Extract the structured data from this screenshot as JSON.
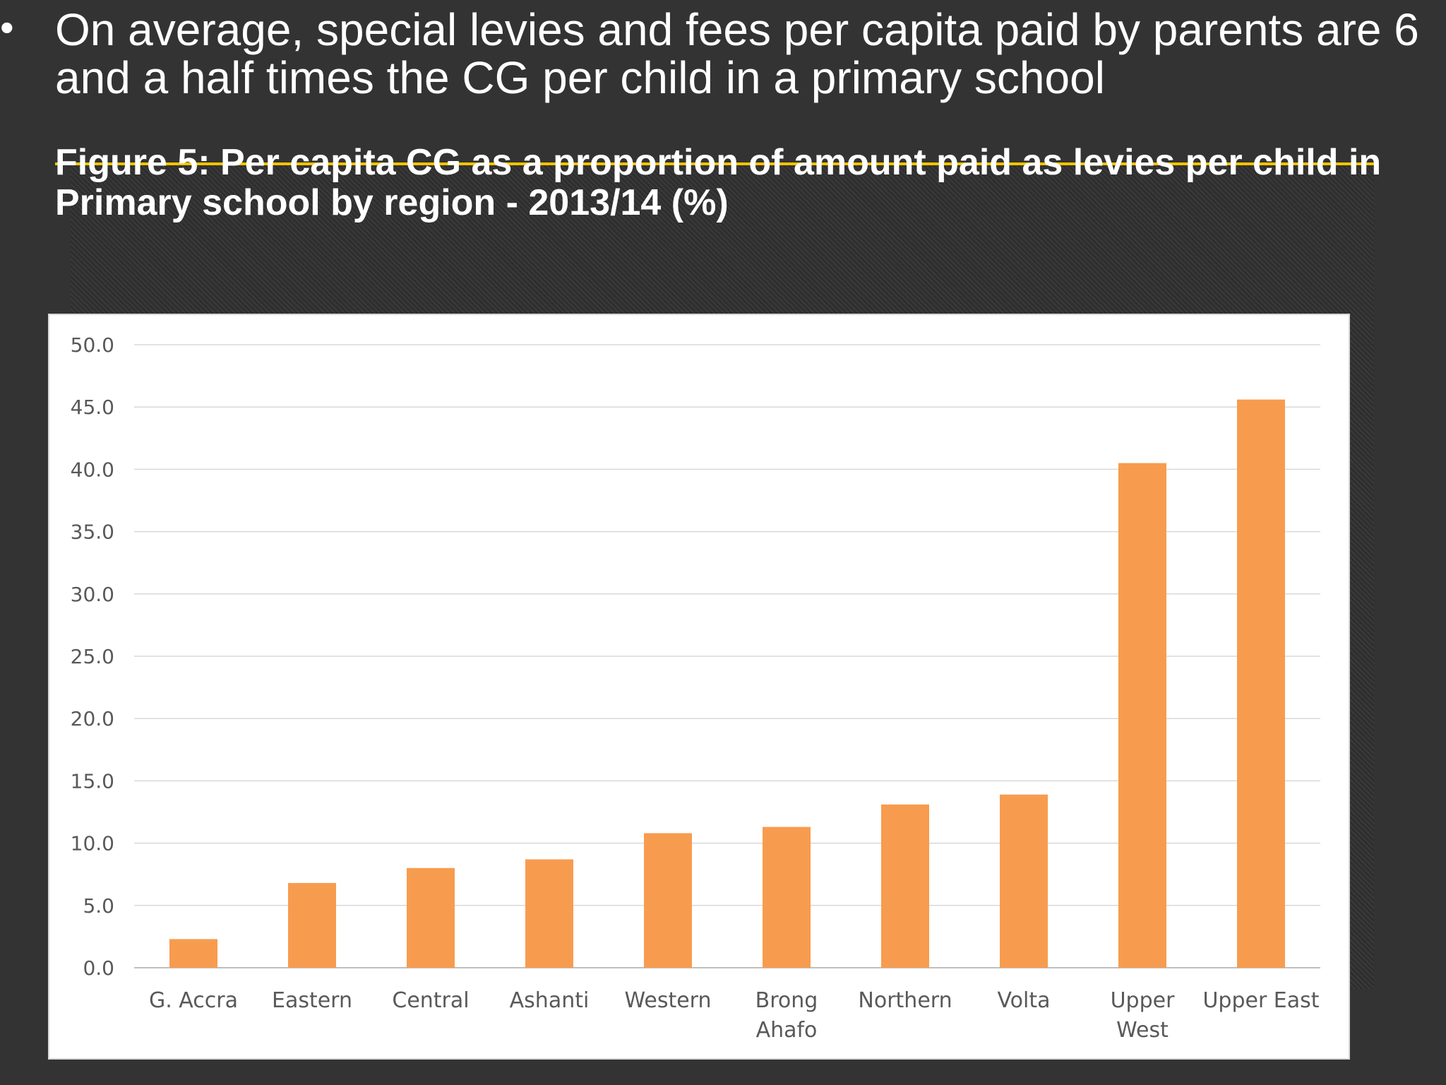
{
  "slide": {
    "bullet_char": "•",
    "bullet_text": "On average, special levies and fees per capita paid by parents are 6 and a half times the CG per child in a primary school",
    "figure_title": "Figure 5: Per capita CG as a proportion of amount paid as levies per child in Primary school by region - 2013/14 (%)"
  },
  "colors": {
    "background": "#333333",
    "bar": "#f79c4f",
    "accent_line": "#f2c300"
  },
  "chart_data": {
    "type": "bar",
    "categories": [
      "G. Accra",
      "Eastern",
      "Central",
      "Ashanti",
      "Western",
      "Brong Ahafo",
      "Northern",
      "Volta",
      "Upper West",
      "Upper East"
    ],
    "category_lines": [
      [
        "G. Accra"
      ],
      [
        "Eastern"
      ],
      [
        "Central"
      ],
      [
        "Ashanti"
      ],
      [
        "Western"
      ],
      [
        "Brong",
        "Ahafo"
      ],
      [
        "Northern"
      ],
      [
        "Volta"
      ],
      [
        "Upper",
        "West"
      ],
      [
        "Upper East"
      ]
    ],
    "values": [
      2.3,
      6.8,
      8.0,
      8.7,
      10.8,
      11.3,
      13.1,
      13.9,
      40.5,
      45.6
    ],
    "ylim": [
      0,
      50
    ],
    "yticks": [
      "0.0",
      "5.0",
      "10.0",
      "15.0",
      "20.0",
      "25.0",
      "30.0",
      "35.0",
      "40.0",
      "45.0",
      "50.0"
    ],
    "grid": true,
    "legend": "none"
  }
}
